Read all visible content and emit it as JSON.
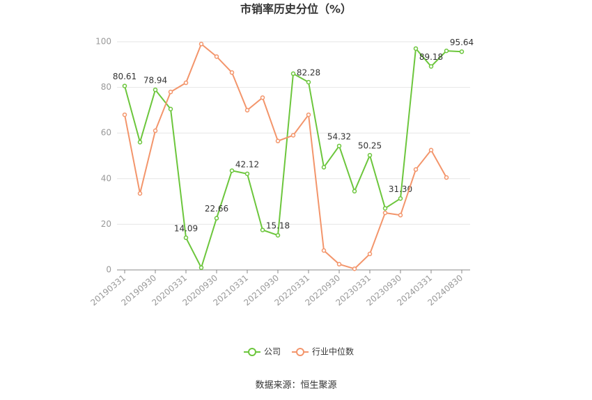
{
  "chart_data": {
    "type": "line",
    "title": "市销率历史分位（%）",
    "categories": [
      "20190331",
      null,
      "20190930",
      null,
      "20200331",
      null,
      "20200930",
      null,
      "20210331",
      null,
      "20210930",
      null,
      "20220331",
      null,
      "20220930",
      null,
      "20230331",
      null,
      "20230930",
      null,
      "20240331",
      null,
      "20240830"
    ],
    "series": [
      {
        "name": "公司",
        "color": "#6cc63c",
        "values": [
          80.61,
          56,
          78.94,
          70.5,
          14.09,
          1,
          22.66,
          43.5,
          42.12,
          17.5,
          15.18,
          86,
          82.28,
          45,
          54.32,
          34.5,
          50.25,
          27,
          31.3,
          97,
          89.18,
          96,
          95.64
        ],
        "value_labels": [
          "80.61",
          null,
          "78.94",
          null,
          "14.09",
          null,
          "22.66",
          null,
          "42.12",
          null,
          "15.18",
          null,
          "82.28",
          null,
          "54.32",
          null,
          "50.25",
          null,
          "31.30",
          null,
          "89.18",
          null,
          "95.64"
        ]
      },
      {
        "name": "行业中位数",
        "color": "#f3956b",
        "values": [
          68,
          33.5,
          61,
          78,
          82,
          99,
          93.5,
          86.5,
          70,
          75.5,
          56.5,
          59,
          68,
          8.5,
          2.5,
          0.5,
          7,
          25,
          24,
          44,
          52.5,
          40.5,
          null
        ]
      }
    ],
    "ylim": [
      0,
      100
    ],
    "yticks": [
      0,
      20,
      40,
      60,
      80,
      100
    ],
    "grid": true,
    "source": "数据来源：恒生聚源"
  }
}
